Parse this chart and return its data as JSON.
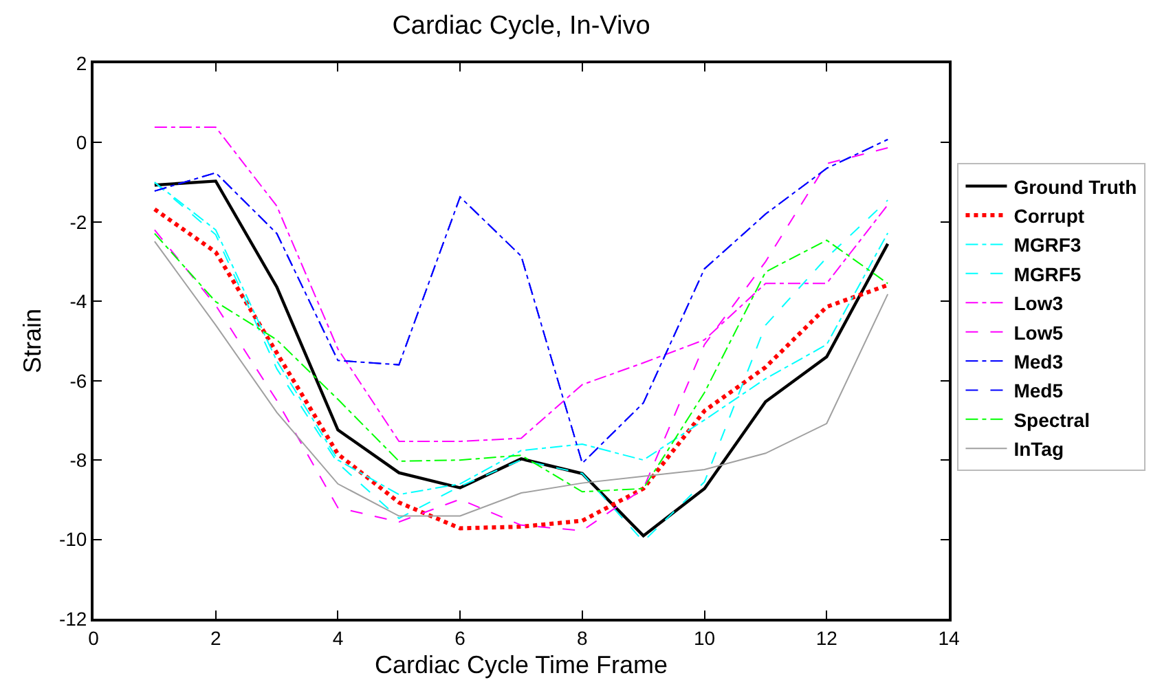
{
  "chart_data": {
    "type": "line",
    "title": "Cardiac Cycle, In-Vivo",
    "xlabel": "Cardiac Cycle Time Frame",
    "ylabel": "Strain",
    "x": [
      1,
      2,
      3,
      4,
      5,
      6,
      7,
      8,
      9,
      10,
      11,
      12,
      13
    ],
    "xlim": [
      0,
      14
    ],
    "xticks": [
      0,
      2,
      4,
      6,
      8,
      10,
      12,
      14
    ],
    "ylim": [
      -12,
      2
    ],
    "yticks": [
      -12,
      -10,
      -8,
      -6,
      -4,
      -2,
      0,
      2
    ],
    "grid": false,
    "legend": "right",
    "marker": "none",
    "series": [
      {
        "name": "Ground Truth",
        "color": "#000000",
        "line_style": "solid",
        "values": [
          -1.07,
          -0.97,
          -3.64,
          -7.24,
          -8.32,
          -8.7,
          -7.97,
          -8.34,
          -9.91,
          -8.72,
          -6.53,
          -5.4,
          -2.55
        ]
      },
      {
        "name": "Corrupt",
        "color": "#ff0000",
        "line_style": "dotted",
        "values": [
          -1.68,
          -2.76,
          -5.3,
          -7.85,
          -9.07,
          -9.72,
          -9.68,
          -9.53,
          -8.72,
          -6.76,
          -5.66,
          -4.14,
          -3.59
        ]
      },
      {
        "name": "MGRF3",
        "color": "#00ffff",
        "line_style": "dashdot",
        "values": [
          -1.0,
          -2.2,
          -5.5,
          -8.0,
          -8.87,
          -8.6,
          -7.76,
          -7.6,
          -8.0,
          -6.99,
          -5.95,
          -5.09,
          -2.28
        ]
      },
      {
        "name": "MGRF5",
        "color": "#00ffff",
        "line_style": "dashed",
        "values": [
          -1.0,
          -2.32,
          -5.7,
          -8.08,
          -9.47,
          -8.66,
          -8.0,
          -8.34,
          -10.05,
          -8.55,
          -4.6,
          -2.9,
          -1.45
        ]
      },
      {
        "name": "Low3",
        "color": "#ff00ff",
        "line_style": "dashdot",
        "values": [
          0.39,
          0.39,
          -1.6,
          -5.2,
          -7.53,
          -7.53,
          -7.45,
          -6.1,
          -5.55,
          -4.97,
          -3.55,
          -3.55,
          -1.57
        ]
      },
      {
        "name": "Low5",
        "color": "#ff00ff",
        "line_style": "dashed",
        "values": [
          -2.2,
          -4.1,
          -6.5,
          -9.2,
          -9.56,
          -8.99,
          -9.64,
          -9.78,
          -8.72,
          -5.09,
          -3.0,
          -0.53,
          -0.13
        ]
      },
      {
        "name": "Med3",
        "color": "#0000ff",
        "line_style": "dashdot",
        "values": [
          -1.22,
          -0.76,
          -2.29,
          -5.49,
          -5.6,
          -1.37,
          -2.86,
          -8.08,
          -6.56,
          -3.18,
          -1.8,
          -0.65,
          0.08
        ]
      },
      {
        "name": "Med5",
        "color": "#0000ff",
        "line_style": "dashed",
        "values": [
          -1.22,
          -0.76,
          -2.29,
          -5.49,
          -5.6,
          -1.37,
          -2.86,
          -8.08,
          -6.56,
          -3.18,
          -1.8,
          -0.65,
          0.08
        ]
      },
      {
        "name": "Spectral",
        "color": "#00ff00",
        "line_style": "dashdot",
        "values": [
          -2.29,
          -4.01,
          -4.97,
          -6.47,
          -8.03,
          -8.0,
          -7.88,
          -8.8,
          -8.72,
          -6.3,
          -3.26,
          -2.46,
          -3.55
        ]
      },
      {
        "name": "InTag",
        "color": "#a0a0a0",
        "line_style": "solid",
        "values": [
          -2.49,
          -4.6,
          -6.8,
          -8.6,
          -9.41,
          -9.41,
          -8.83,
          -8.58,
          -8.41,
          -8.24,
          -7.83,
          -7.08,
          -3.82
        ]
      }
    ]
  }
}
